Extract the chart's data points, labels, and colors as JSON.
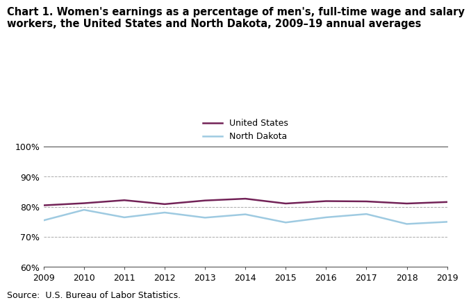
{
  "years": [
    2009,
    2010,
    2011,
    2012,
    2013,
    2014,
    2015,
    2016,
    2017,
    2018,
    2019
  ],
  "us_values": [
    80.5,
    81.2,
    82.2,
    80.9,
    82.1,
    82.7,
    81.1,
    81.9,
    81.8,
    81.1,
    81.6
  ],
  "nd_values": [
    75.5,
    79.0,
    76.5,
    78.1,
    76.4,
    77.5,
    74.8,
    76.5,
    77.6,
    74.3,
    75.0
  ],
  "title_line1": "Chart 1. Women's earnings as a percentage of men's, full-time wage and salary",
  "title_line2": "workers, the United States and North Dakota, 2009–19 annual averages",
  "us_label": "United States",
  "nd_label": "North Dakota",
  "us_color": "#722257",
  "nd_color": "#9ECAE1",
  "ylim": [
    60,
    100
  ],
  "yticks": [
    60,
    70,
    80,
    90,
    100
  ],
  "ytick_labels": [
    "60%",
    "70%",
    "80%",
    "90%",
    "100%"
  ],
  "source": "Source:  U.S. Bureau of Labor Statistics.",
  "line_width": 1.8,
  "title_fontsize": 10.5,
  "tick_fontsize": 9,
  "legend_fontsize": 9,
  "source_fontsize": 9,
  "background_color": "#ffffff",
  "grid_color": "#aaaaaa",
  "spine_color": "#555555"
}
